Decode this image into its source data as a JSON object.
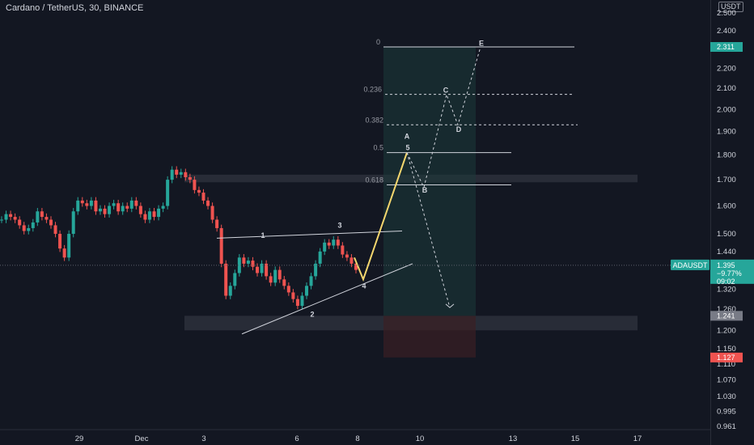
{
  "header": {
    "title": "Cardano / TetherUS, 30, BINANCE",
    "currency": "USDT"
  },
  "chart_data": {
    "type": "candlestick",
    "price_axis_ticks": [
      "2.500",
      "2.400",
      "2.300",
      "2.200",
      "2.100",
      "2.000",
      "1.900",
      "1.800",
      "1.700",
      "1.600",
      "1.500",
      "1.440",
      "1.320",
      "1.260",
      "1.200",
      "1.150",
      "1.110",
      "1.070",
      "1.030",
      "0.995",
      "0.961"
    ],
    "time_axis_ticks": [
      "29",
      "Dec",
      "3",
      "6",
      "8",
      "10",
      "13",
      "15",
      "17"
    ],
    "price_scale": "log",
    "symbol_label": "ADAUSDT",
    "last_price": {
      "price": "1.395",
      "change": "−9.77%",
      "countdown": "09:02"
    },
    "labels": [
      {
        "text": "2.311",
        "color": "#ffffff",
        "bg": "#26a69a"
      },
      {
        "text": "1.241",
        "color": "#ffffff",
        "bg": "#787b86"
      },
      {
        "text": "1.127",
        "color": "#ffffff",
        "bg": "#ef5350"
      }
    ],
    "fib_levels": [
      {
        "ratio": "0",
        "price": 2.311
      },
      {
        "ratio": "0.236",
        "price": 2.071
      },
      {
        "ratio": "0.382",
        "price": 1.93
      },
      {
        "ratio": "0.5",
        "price": 1.81
      },
      {
        "ratio": "0.618",
        "price": 1.68
      }
    ],
    "wave_labels": [
      "1",
      "2",
      "3",
      "4",
      "5",
      "A",
      "B",
      "C",
      "D",
      "E"
    ],
    "zones": [
      {
        "name": "resistance-zone",
        "from": 1.69,
        "to": 1.72
      },
      {
        "name": "support-zone",
        "from": 1.2,
        "to": 1.241
      }
    ],
    "position": {
      "entry": 1.241,
      "target": 2.311,
      "stop": 1.127
    },
    "candles_close_path": [
      1.55,
      1.57,
      1.56,
      1.55,
      1.53,
      1.51,
      1.52,
      1.54,
      1.58,
      1.56,
      1.55,
      1.53,
      1.5,
      1.45,
      1.42,
      1.5,
      1.58,
      1.62,
      1.61,
      1.6,
      1.62,
      1.58,
      1.59,
      1.57,
      1.6,
      1.61,
      1.58,
      1.6,
      1.59,
      1.62,
      1.6,
      1.57,
      1.55,
      1.58,
      1.56,
      1.59,
      1.6,
      1.7,
      1.74,
      1.72,
      1.73,
      1.71,
      1.7,
      1.66,
      1.65,
      1.62,
      1.6,
      1.55,
      1.52,
      1.4,
      1.3,
      1.33,
      1.37,
      1.42,
      1.4,
      1.41,
      1.39,
      1.37,
      1.4,
      1.36,
      1.34,
      1.38,
      1.35,
      1.33,
      1.31,
      1.29,
      1.27,
      1.3,
      1.33,
      1.36,
      1.4,
      1.44,
      1.47,
      1.46,
      1.48,
      1.46,
      1.43,
      1.42,
      1.4,
      1.38
    ]
  }
}
